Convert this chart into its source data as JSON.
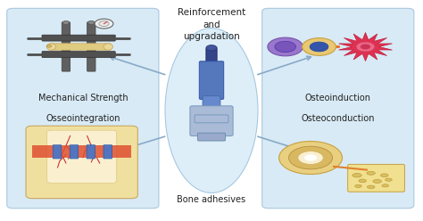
{
  "white_bg": "#ffffff",
  "box_color": "#d8eaf5",
  "box_edge": "#a8c8e0",
  "center_ellipse_color": "#ddeef8",
  "arrow_color": "#88aac8",
  "top_text": "Reinforcement\nand\nupgradation",
  "bottom_text": "Bone adhesives",
  "tl_label1": "Mechanical Strength",
  "tl_label2": "Osseointegration",
  "tr_label1": "Osteoinduction",
  "tr_label2": "Osteoconduction",
  "font_size_label": 7.0,
  "font_size_top": 7.5
}
